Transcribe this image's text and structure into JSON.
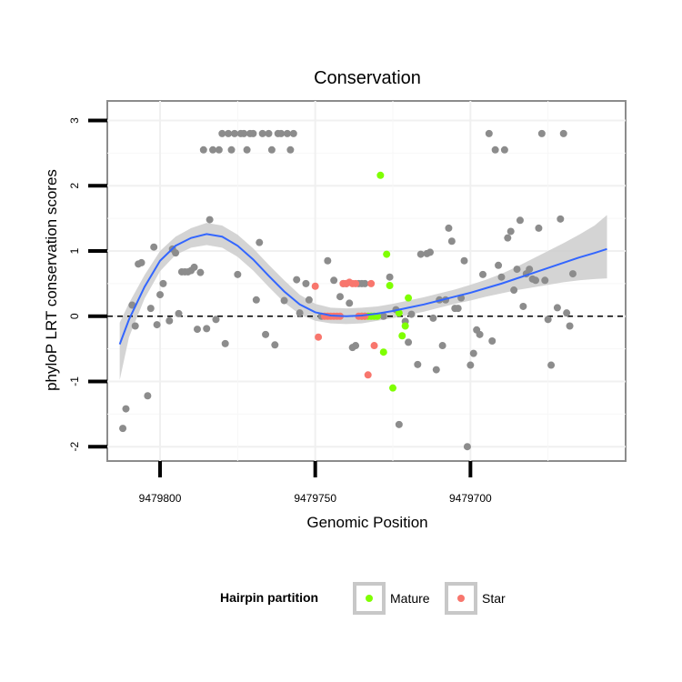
{
  "chart_data": {
    "type": "scatter",
    "title": "Conservation",
    "xlabel": "Genomic Position",
    "ylabel": "phyloP LRT conservation scores",
    "x_reversed": true,
    "xlim": [
      9479817,
      9479650
    ],
    "ylim": [
      -2.22,
      3.3
    ],
    "x_ticks": [
      9479800,
      9479750,
      9479700
    ],
    "x_tick_labels": [
      "9479800",
      "9479750",
      "9479700"
    ],
    "y_ticks": [
      -2,
      -1,
      0,
      1,
      2,
      3
    ],
    "y_tick_labels": [
      "-2",
      "-1",
      "0",
      "1",
      "2",
      "3"
    ],
    "grid": true,
    "reference_line": {
      "y": 0,
      "style": "dashed"
    },
    "legend": {
      "title": "Hairpin partition",
      "position": "bottom",
      "entries": [
        {
          "label": "Mature",
          "color": "#7FFF00"
        },
        {
          "label": "Star",
          "color": "#F8766D"
        }
      ]
    },
    "colors": {
      "other": "#8C8C8C",
      "mature": "#7FFF00",
      "star": "#F8766D",
      "smooth_line": "#3366FF",
      "confidence_band": "#CCCCCC"
    },
    "smooth_curve": {
      "x": [
        9479813,
        9479810,
        9479805,
        9479800,
        9479795,
        9479790,
        9479785,
        9479780,
        9479775,
        9479770,
        9479765,
        9479760,
        9479755,
        9479750,
        9479745,
        9479740,
        9479735,
        9479730,
        9479725,
        9479720,
        9479715,
        9479710,
        9479705,
        9479700,
        9479695,
        9479690,
        9479685,
        9479680,
        9479675,
        9479670,
        9479665,
        9479660,
        9479656
      ],
      "y": [
        -0.43,
        -0.05,
        0.45,
        0.85,
        1.08,
        1.2,
        1.26,
        1.22,
        1.08,
        0.87,
        0.62,
        0.38,
        0.18,
        0.06,
        0.01,
        0.0,
        0.01,
        0.04,
        0.08,
        0.13,
        0.18,
        0.24,
        0.3,
        0.36,
        0.43,
        0.5,
        0.58,
        0.66,
        0.74,
        0.82,
        0.9,
        0.97,
        1.03
      ],
      "upper": [
        -0.1,
        0.2,
        0.63,
        1.0,
        1.22,
        1.35,
        1.43,
        1.39,
        1.25,
        1.04,
        0.79,
        0.55,
        0.33,
        0.19,
        0.13,
        0.12,
        0.13,
        0.15,
        0.19,
        0.24,
        0.29,
        0.35,
        0.41,
        0.48,
        0.56,
        0.65,
        0.76,
        0.88,
        1.0,
        1.12,
        1.25,
        1.39,
        1.55
      ],
      "lower": [
        -0.98,
        -0.32,
        0.27,
        0.69,
        0.94,
        1.05,
        1.09,
        1.05,
        0.91,
        0.7,
        0.45,
        0.21,
        0.03,
        -0.07,
        -0.11,
        -0.12,
        -0.11,
        -0.07,
        -0.03,
        0.02,
        0.07,
        0.13,
        0.19,
        0.24,
        0.3,
        0.35,
        0.4,
        0.44,
        0.48,
        0.52,
        0.55,
        0.57,
        0.58
      ]
    },
    "series": [
      {
        "key": "other",
        "points": [
          [
            9479812,
            -1.72
          ],
          [
            9479811,
            -1.42
          ],
          [
            9479809,
            0.17
          ],
          [
            9479808,
            -0.15
          ],
          [
            9479807,
            0.8
          ],
          [
            9479806,
            0.82
          ],
          [
            9479804,
            -1.22
          ],
          [
            9479803,
            0.12
          ],
          [
            9479802,
            1.06
          ],
          [
            9479801,
            -0.13
          ],
          [
            9479800,
            0.33
          ],
          [
            9479799,
            0.5
          ],
          [
            9479797,
            -0.07
          ],
          [
            9479796,
            1.03
          ],
          [
            9479795,
            0.97
          ],
          [
            9479794,
            0.04
          ],
          [
            9479793,
            0.68
          ],
          [
            9479792,
            0.68
          ],
          [
            9479791,
            0.68
          ],
          [
            9479790,
            0.7
          ],
          [
            9479789,
            0.75
          ],
          [
            9479788,
            -0.2
          ],
          [
            9479787,
            0.67
          ],
          [
            9479786,
            2.55
          ],
          [
            9479785,
            -0.19
          ],
          [
            9479784,
            1.48
          ],
          [
            9479783,
            2.55
          ],
          [
            9479782,
            -0.05
          ],
          [
            9479781,
            2.55
          ],
          [
            9479780,
            2.8
          ],
          [
            9479779,
            -0.42
          ],
          [
            9479778,
            2.8
          ],
          [
            9479777,
            2.55
          ],
          [
            9479776,
            2.8
          ],
          [
            9479775,
            0.64
          ],
          [
            9479774,
            2.8
          ],
          [
            9479773,
            2.8
          ],
          [
            9479772,
            2.55
          ],
          [
            9479771,
            2.8
          ],
          [
            9479770,
            2.8
          ],
          [
            9479769,
            0.25
          ],
          [
            9479768,
            1.13
          ],
          [
            9479767,
            2.8
          ],
          [
            9479766,
            -0.28
          ],
          [
            9479765,
            2.8
          ],
          [
            9479764,
            2.55
          ],
          [
            9479763,
            -0.44
          ],
          [
            9479762,
            2.8
          ],
          [
            9479761,
            2.8
          ],
          [
            9479760,
            0.24
          ],
          [
            9479759,
            2.8
          ],
          [
            9479758,
            2.55
          ],
          [
            9479757,
            2.8
          ],
          [
            9479756,
            0.56
          ],
          [
            9479755,
            0.05
          ],
          [
            9479753,
            0.5
          ],
          [
            9479752,
            0.25
          ],
          [
            9479748,
            0.0
          ],
          [
            9479746,
            0.85
          ],
          [
            9479744,
            0.55
          ],
          [
            9479742,
            0.3
          ],
          [
            9479741,
            0.5
          ],
          [
            9479740,
            0.5
          ],
          [
            9479739,
            0.2
          ],
          [
            9479738,
            -0.48
          ],
          [
            9479737,
            -0.45
          ],
          [
            9479736,
            0.5
          ],
          [
            9479735,
            0.5
          ],
          [
            9479734,
            0.5
          ],
          [
            9479728,
            0.0
          ],
          [
            9479726,
            0.6
          ],
          [
            9479724,
            0.1
          ],
          [
            9479723,
            -1.66
          ],
          [
            9479721,
            -0.08
          ],
          [
            9479720,
            -0.4
          ],
          [
            9479719,
            0.03
          ],
          [
            9479717,
            -0.74
          ],
          [
            9479716,
            0.95
          ],
          [
            9479714,
            0.96
          ],
          [
            9479713,
            0.98
          ],
          [
            9479712,
            -0.03
          ],
          [
            9479711,
            -0.82
          ],
          [
            9479710,
            0.25
          ],
          [
            9479709,
            -0.45
          ],
          [
            9479708,
            0.25
          ],
          [
            9479707,
            1.35
          ],
          [
            9479706,
            1.15
          ],
          [
            9479705,
            0.12
          ],
          [
            9479704,
            0.12
          ],
          [
            9479703,
            0.28
          ],
          [
            9479702,
            0.85
          ],
          [
            9479701,
            -2.0
          ],
          [
            9479700,
            -0.75
          ],
          [
            9479699,
            -0.57
          ],
          [
            9479698,
            -0.21
          ],
          [
            9479697,
            -0.28
          ],
          [
            9479696,
            0.64
          ],
          [
            9479694,
            2.8
          ],
          [
            9479693,
            -0.38
          ],
          [
            9479692,
            2.55
          ],
          [
            9479691,
            0.78
          ],
          [
            9479690,
            0.6
          ],
          [
            9479689,
            2.55
          ],
          [
            9479688,
            1.2
          ],
          [
            9479687,
            1.3
          ],
          [
            9479686,
            0.4
          ],
          [
            9479685,
            0.72
          ],
          [
            9479684,
            1.47
          ],
          [
            9479683,
            0.15
          ],
          [
            9479682,
            0.65
          ],
          [
            9479681,
            0.72
          ],
          [
            9479680,
            0.57
          ],
          [
            9479679,
            0.55
          ],
          [
            9479678,
            1.35
          ],
          [
            9479677,
            2.8
          ],
          [
            9479676,
            0.55
          ],
          [
            9479675,
            -0.05
          ],
          [
            9479674,
            -0.75
          ],
          [
            9479672,
            0.13
          ],
          [
            9479671,
            1.49
          ],
          [
            9479670,
            2.8
          ],
          [
            9479669,
            0.05
          ],
          [
            9479668,
            -0.15
          ],
          [
            9479667,
            0.65
          ]
        ]
      },
      {
        "key": "mature",
        "points": [
          [
            9479735,
            0.0
          ],
          [
            9479734,
            0.0
          ],
          [
            9479733,
            0.0
          ],
          [
            9479732,
            0.0
          ],
          [
            9479731,
            0.0
          ],
          [
            9479730,
            0.0
          ],
          [
            9479729,
            2.16
          ],
          [
            9479728,
            -0.55
          ],
          [
            9479727,
            0.95
          ],
          [
            9479726,
            0.47
          ],
          [
            9479725,
            -1.1
          ],
          [
            9479723,
            0.05
          ],
          [
            9479722,
            -0.3
          ],
          [
            9479721,
            -0.15
          ],
          [
            9479720,
            0.28
          ]
        ]
      },
      {
        "key": "star",
        "points": [
          [
            9479750,
            0.46
          ],
          [
            9479749,
            -0.32
          ],
          [
            9479747,
            0.0
          ],
          [
            9479746,
            0.0
          ],
          [
            9479745,
            0.0
          ],
          [
            9479744,
            0.0
          ],
          [
            9479743,
            0.0
          ],
          [
            9479742,
            0.0
          ],
          [
            9479741,
            0.5
          ],
          [
            9479740,
            0.5
          ],
          [
            9479739,
            0.52
          ],
          [
            9479738,
            0.5
          ],
          [
            9479737,
            0.5
          ],
          [
            9479736,
            0.0
          ],
          [
            9479735,
            0.0
          ],
          [
            9479734,
            0.0
          ],
          [
            9479733,
            -0.9
          ],
          [
            9479732,
            0.5
          ],
          [
            9479731,
            -0.45
          ]
        ]
      }
    ]
  }
}
